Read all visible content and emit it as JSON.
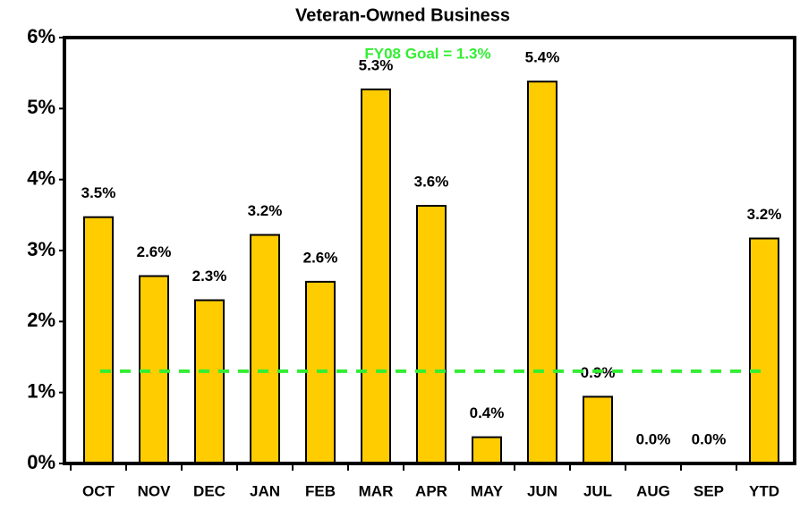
{
  "chart_data": {
    "type": "bar",
    "title": "Veteran-Owned Business",
    "categories": [
      "OCT",
      "NOV",
      "DEC",
      "JAN",
      "FEB",
      "MAR",
      "APR",
      "MAY",
      "JUN",
      "JUL",
      "AUG",
      "SEP",
      "YTD"
    ],
    "values": [
      3.47,
      2.64,
      2.3,
      3.22,
      2.56,
      5.27,
      3.63,
      0.37,
      5.38,
      0.94,
      0,
      0,
      3.17
    ],
    "value_labels": [
      "3.5%",
      "2.6%",
      "2.3%",
      "3.2%",
      "2.6%",
      "5.3%",
      "3.6%",
      "0.4%",
      "5.4%",
      "0.9%",
      "0.0%",
      "0.0%",
      "3.2%"
    ],
    "color": "#ffcc00",
    "ylim": [
      0,
      6
    ],
    "yticks": [
      {
        "value": 0,
        "label": "0%"
      },
      {
        "value": 1,
        "label": "1%"
      },
      {
        "value": 2,
        "label": "2%"
      },
      {
        "value": 3,
        "label": "3%"
      },
      {
        "value": 4,
        "label": "4%"
      },
      {
        "value": 5,
        "label": "5%"
      },
      {
        "value": 6,
        "label": "6%"
      }
    ],
    "goal": {
      "value": 1.3,
      "label": "FY08 Goal = 1.3%",
      "color": "#33ee33"
    }
  }
}
